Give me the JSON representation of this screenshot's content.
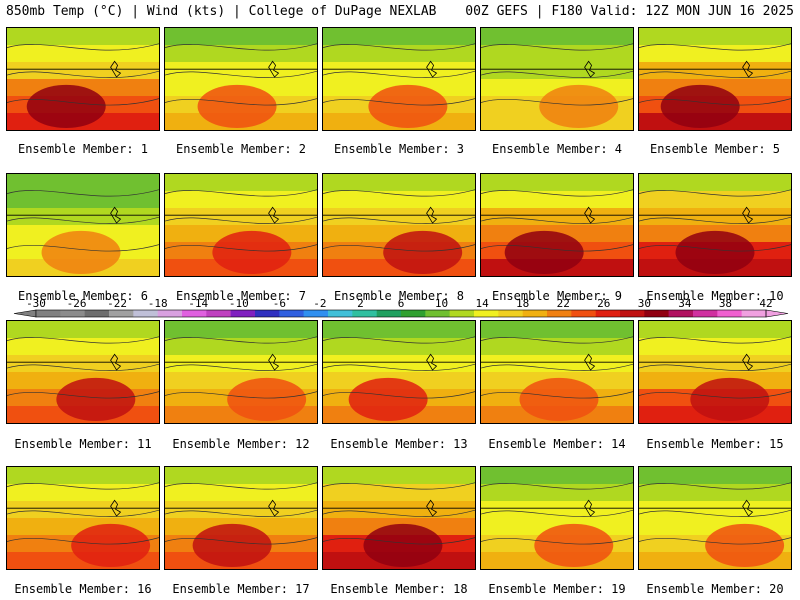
{
  "header": {
    "left": "850mb Temp (°C) | Wind (kts) | College of DuPage NEXLAB",
    "right": "00Z GEFS | F180 Valid: 12Z MON JUN 16 2025"
  },
  "colorbar": {
    "labels": [
      "-30",
      "-26",
      "-22",
      "-18",
      "-14",
      "-10",
      "-6",
      "-2",
      "2",
      "6",
      "10",
      "14",
      "18",
      "22",
      "26",
      "30",
      "34",
      "38",
      "42"
    ],
    "colors": [
      "#808080",
      "#8c8c8c",
      "#6e6e6e",
      "#a0a0a0",
      "#c0c0d8",
      "#d9a0e0",
      "#e060e0",
      "#c040c0",
      "#8020c0",
      "#3030c0",
      "#3060e0",
      "#3090f0",
      "#40c0d8",
      "#30c0a0",
      "#20a060",
      "#30a030",
      "#70c030",
      "#b0d820",
      "#f0f020",
      "#f0d020",
      "#f0b010",
      "#f08010",
      "#f05010",
      "#e02010",
      "#c01010",
      "#900010",
      "#b01060",
      "#d030a0",
      "#f060d0",
      "#f0a0e0"
    ]
  },
  "members": [
    {
      "label": "Ensemble Member: 1",
      "warmth": 0.75
    },
    {
      "label": "Ensemble Member: 2",
      "warmth": 0.45
    },
    {
      "label": "Ensemble Member: 3",
      "warmth": 0.45
    },
    {
      "label": "Ensemble Member: 4",
      "warmth": 0.4
    },
    {
      "label": "Ensemble Member: 5",
      "warmth": 0.8
    },
    {
      "label": "Ensemble Member: 6",
      "warmth": 0.35
    },
    {
      "label": "Ensemble Member: 7",
      "warmth": 0.6
    },
    {
      "label": "Ensemble Member: 8",
      "warmth": 0.65
    },
    {
      "label": "Ensemble Member: 9",
      "warmth": 0.8
    },
    {
      "label": "Ensemble Member: 10",
      "warmth": 0.85
    },
    {
      "label": "Ensemble Member: 11",
      "warmth": 0.65
    },
    {
      "label": "Ensemble Member: 12",
      "warmth": 0.5
    },
    {
      "label": "Ensemble Member: 13",
      "warmth": 0.55
    },
    {
      "label": "Ensemble Member: 14",
      "warmth": 0.5
    },
    {
      "label": "Ensemble Member: 15",
      "warmth": 0.7
    },
    {
      "label": "Ensemble Member: 16",
      "warmth": 0.6
    },
    {
      "label": "Ensemble Member: 17",
      "warmth": 0.65
    },
    {
      "label": "Ensemble Member: 18",
      "warmth": 0.85
    },
    {
      "label": "Ensemble Member: 19",
      "warmth": 0.45
    },
    {
      "label": "Ensemble Member: 20",
      "warmth": 0.45
    }
  ]
}
